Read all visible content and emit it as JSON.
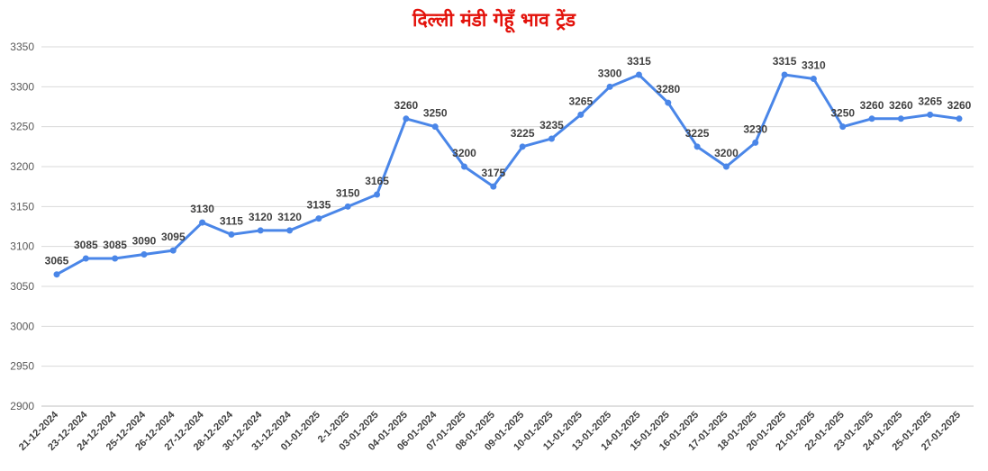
{
  "chart_data": {
    "type": "line",
    "title": "दिल्ली मंडी गेहूँ भाव ट्रेंड",
    "xlabel": "",
    "ylabel": "",
    "ylim": [
      2900,
      3350
    ],
    "yticks": [
      2900,
      2950,
      3000,
      3050,
      3100,
      3150,
      3200,
      3250,
      3300,
      3350
    ],
    "grid": true,
    "legend": "none",
    "line_color": "#4a86e8",
    "categories": [
      "21-12-2024",
      "23-12-2024",
      "24-12-2024",
      "25-12-2024",
      "26-12-2024",
      "27-12-2024",
      "28-12-2024",
      "30-12-2024",
      "31-12-2024",
      "01-01-2025",
      "2-1-2025",
      "03-01-2025",
      "04-01-2025",
      "06-01-2024",
      "07-01-2025",
      "08-01-2025",
      "09-01-2025",
      "10-01-2025",
      "11-01-2025",
      "13-01-2025",
      "14-01-2025",
      "15-01-2025",
      "16-01-2025",
      "17-01-2025",
      "18-01-2025",
      "20-01-2025",
      "21-01-2025",
      "22-01-2025",
      "23-01-2025",
      "24-01-2025",
      "25-01-2025",
      "27-01-2025"
    ],
    "values": [
      3065,
      3085,
      3085,
      3090,
      3095,
      3130,
      3115,
      3120,
      3120,
      3135,
      3150,
      3165,
      3260,
      3250,
      3200,
      3175,
      3225,
      3235,
      3265,
      3300,
      3315,
      3280,
      3225,
      3200,
      3230,
      3315,
      3310,
      3250,
      3260,
      3260,
      3265,
      3260
    ]
  }
}
